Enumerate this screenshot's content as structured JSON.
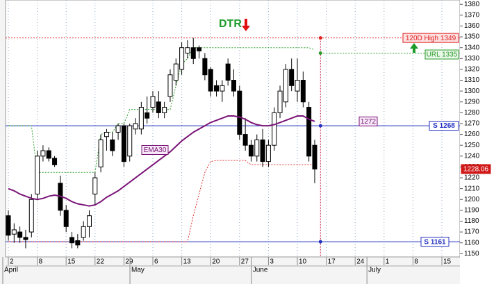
{
  "chart_data": {
    "type": "candlestick",
    "title": "DTR",
    "categories": [
      "2",
      null,
      null,
      null,
      null,
      "8",
      null,
      null,
      null,
      null,
      "15",
      null,
      null,
      null,
      null,
      "22",
      null,
      null,
      null,
      null,
      "29",
      null,
      null,
      null,
      null,
      "6",
      null,
      null,
      null,
      null,
      "13",
      null,
      null,
      null,
      null,
      "20",
      null,
      null,
      null,
      null,
      "27",
      null,
      null,
      null,
      null,
      "3",
      null,
      null,
      null,
      null,
      "10",
      null,
      null,
      null,
      null,
      "17",
      null,
      null,
      null,
      null,
      "24",
      null,
      null,
      null,
      null,
      "1",
      null,
      null,
      null,
      null,
      "8",
      null,
      null,
      null,
      null,
      "15",
      null,
      null,
      null,
      null
    ],
    "months": [
      "April",
      null,
      null,
      null,
      null,
      null,
      null,
      null,
      null,
      null,
      null,
      null,
      null,
      null,
      null,
      null,
      null,
      null,
      null,
      null,
      null,
      null,
      "May",
      null,
      null,
      null,
      null,
      null,
      null,
      null,
      null,
      null,
      null,
      null,
      null,
      null,
      null,
      null,
      null,
      null,
      null,
      null,
      null,
      "June",
      null,
      null,
      null,
      null,
      null,
      null,
      null,
      null,
      null,
      null,
      null,
      null,
      null,
      null,
      null,
      null,
      null,
      null,
      null,
      "July",
      null,
      null,
      null,
      null,
      null,
      null,
      null,
      null,
      null,
      null,
      null,
      null,
      null,
      null,
      null
    ],
    "open": [
      1185,
      1168,
      1170,
      1165,
      1170,
      1205,
      1240,
      1245,
      1238,
      1215,
      1190,
      1165,
      1162,
      1165,
      1175,
      1205,
      1230,
      1258,
      1255,
      1262,
      1268,
      1240,
      1265,
      1265,
      1280,
      1285,
      1290,
      1280,
      1295,
      1310,
      1320,
      1335,
      1340,
      1340,
      1330,
      1320,
      1305,
      1300,
      1325,
      1310,
      1300,
      1260,
      1250,
      1240,
      1255,
      1235,
      1250,
      1280,
      1290,
      1320,
      1300,
      1310,
      1285,
      1250,
      null,
      null,
      null,
      null,
      null,
      null,
      null,
      null,
      null,
      null,
      null,
      null,
      null,
      null,
      null,
      null,
      null,
      null,
      null,
      null,
      null,
      null,
      null,
      null,
      null,
      null
    ],
    "high": [
      1190,
      1178,
      1175,
      1172,
      1205,
      1245,
      1250,
      1248,
      1240,
      1222,
      1195,
      1170,
      1168,
      1180,
      1190,
      1225,
      1260,
      1265,
      1262,
      1270,
      1270,
      1270,
      1275,
      1290,
      1295,
      1300,
      1300,
      1290,
      1320,
      1330,
      1345,
      1347,
      1349,
      1342,
      1335,
      1322,
      1310,
      1310,
      1330,
      1320,
      1305,
      1275,
      1255,
      1260,
      1265,
      1255,
      1285,
      1305,
      1325,
      1330,
      1330,
      1318,
      1290,
      1255,
      null,
      null,
      null,
      null,
      null,
      null,
      null,
      null,
      null,
      null,
      null,
      null,
      null,
      null,
      null,
      null,
      null,
      null,
      null,
      null,
      null,
      null,
      null,
      null,
      null,
      null
    ],
    "low": [
      1162,
      1160,
      1160,
      1155,
      1165,
      1200,
      1235,
      1235,
      1230,
      1185,
      1170,
      1155,
      1155,
      1162,
      1165,
      1195,
      1225,
      1245,
      1240,
      1255,
      1230,
      1235,
      1260,
      1260,
      1270,
      1280,
      1275,
      1275,
      1290,
      1305,
      1315,
      1330,
      1325,
      1330,
      1310,
      1295,
      1295,
      1290,
      1305,
      1295,
      1255,
      1245,
      1235,
      1235,
      1230,
      1230,
      1245,
      1275,
      1285,
      1300,
      1290,
      1285,
      1235,
      1215,
      null,
      null,
      null,
      null,
      null,
      null,
      null,
      null,
      null,
      null,
      null,
      null,
      null,
      null,
      null,
      null,
      null,
      null,
      null,
      null,
      null,
      null,
      null,
      null,
      null,
      null
    ],
    "close": [
      1167,
      1172,
      1165,
      1163,
      1200,
      1240,
      1245,
      1238,
      1232,
      1190,
      1175,
      1160,
      1158,
      1175,
      1185,
      1220,
      1255,
      1262,
      1245,
      1268,
      1235,
      1268,
      1270,
      1285,
      1275,
      1295,
      1280,
      1285,
      1315,
      1325,
      1340,
      1340,
      1330,
      1337,
      1315,
      1300,
      1300,
      1305,
      1310,
      1300,
      1260,
      1250,
      1240,
      1255,
      1235,
      1250,
      1280,
      1300,
      1320,
      1305,
      1310,
      1290,
      1240,
      1228.06,
      null,
      null,
      null,
      null,
      null,
      null,
      null,
      null,
      null,
      null,
      null,
      null,
      null,
      null,
      null,
      null,
      null,
      null,
      null,
      null,
      null,
      null,
      null,
      null,
      null,
      null
    ],
    "ema": {
      "label": "EMA30",
      "color": "#7a1478",
      "values": [
        1210,
        1208,
        1205,
        1203,
        1201,
        1200,
        1201,
        1203,
        1204,
        1203,
        1201,
        1198,
        1196,
        1195,
        1194,
        1195,
        1198,
        1202,
        1205,
        1208,
        1212,
        1216,
        1220,
        1224,
        1228,
        1232,
        1236,
        1240,
        1244,
        1249,
        1254,
        1258,
        1262,
        1265,
        1268,
        1271,
        1273,
        1275,
        1277,
        1277,
        1276,
        1274,
        1271,
        1269,
        1268,
        1268,
        1269,
        1271,
        1273,
        1275,
        1277,
        1277,
        1274,
        1272,
        null,
        null,
        null,
        null,
        null,
        null,
        null,
        null,
        null,
        null,
        null,
        null,
        null,
        null,
        null,
        null,
        null,
        null,
        null,
        null,
        null,
        null,
        null,
        null,
        null,
        null
      ]
    },
    "upper_stop": {
      "color": "#2e9e2e",
      "values": [
        1268,
        1268,
        1268,
        1268,
        1268,
        1225,
        1225,
        1225,
        1225,
        1225,
        1225,
        1225,
        1225,
        1225,
        1225,
        1225,
        1260,
        1262,
        1262,
        1270,
        1270,
        1283,
        1283,
        1283,
        1283,
        1283,
        1283,
        1283,
        1283,
        1305,
        1325,
        1330,
        1340,
        1340,
        1340,
        1340,
        1340,
        1340,
        1340,
        1340,
        1340,
        1340,
        1340,
        1340,
        1340,
        1340,
        1340,
        1340,
        1340,
        1340,
        1340,
        1340,
        1340,
        1338,
        null,
        null,
        null,
        null,
        null,
        null,
        null,
        null,
        null,
        null,
        null,
        null,
        null,
        null,
        null,
        null,
        null,
        null,
        null,
        null,
        null,
        null,
        null,
        null,
        null,
        null
      ]
    },
    "lower_stop": {
      "color": "#e03030",
      "values": [
        1161,
        1161,
        1161,
        1161,
        1161,
        1161,
        1161,
        1161,
        1161,
        1161,
        1161,
        1161,
        1161,
        1161,
        1161,
        1161,
        1161,
        1161,
        1161,
        1161,
        1161,
        1161,
        1161,
        1161,
        1161,
        1161,
        1161,
        1161,
        1161,
        1161,
        1161,
        1161,
        1185,
        1205,
        1225,
        1235,
        1236,
        1236,
        1236,
        1236,
        1236,
        1236,
        1232,
        1232,
        1232,
        1232,
        1232,
        1232,
        1232,
        1232,
        1232,
        1232,
        1232,
        1232,
        null,
        null,
        null,
        null,
        null,
        null,
        null,
        null,
        null,
        null,
        null,
        null,
        null,
        null,
        null,
        null,
        null,
        null,
        null,
        null,
        null,
        null,
        null,
        null,
        null,
        null
      ]
    },
    "levels": [
      {
        "label": "120D High 1349",
        "value": 1349,
        "color": "#e02020",
        "style": "dotted"
      },
      {
        "label": "URL 1335",
        "value": 1335,
        "color": "#2a9a2a",
        "style": "end"
      },
      {
        "label": "S 1268",
        "value": 1268,
        "color": "#2030c0",
        "style": "solid"
      },
      {
        "label": "S 1161",
        "value": 1161,
        "color": "#2030c0",
        "style": "solid"
      }
    ],
    "ylim": [
      1147,
      1384
    ],
    "yticks": [
      1150,
      1160,
      1170,
      1180,
      1190,
      1200,
      1210,
      1220,
      1230,
      1240,
      1250,
      1260,
      1270,
      1280,
      1290,
      1300,
      1310,
      1320,
      1330,
      1340,
      1350,
      1360,
      1370,
      1380
    ],
    "grid": true
  }
}
